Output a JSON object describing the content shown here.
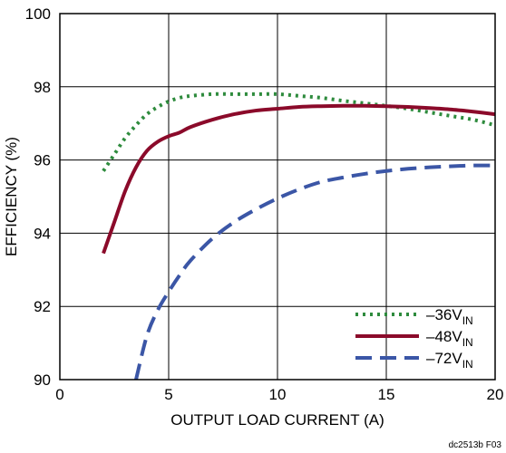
{
  "chart_data": {
    "type": "line",
    "xlabel": "OUTPUT LOAD CURRENT (A)",
    "ylabel": "EFFICIENCY (%)",
    "xlim": [
      0,
      20
    ],
    "ylim": [
      90,
      100
    ],
    "xticks": [
      0,
      5,
      10,
      15,
      20
    ],
    "yticks": [
      90,
      92,
      94,
      96,
      98,
      100
    ],
    "grid": true,
    "legend_position": "bottom-right",
    "series": [
      {
        "name": "–36V",
        "name_sub": "IN",
        "color": "#2e8b3d",
        "dash": "dotted",
        "x": [
          2,
          2.5,
          3,
          3.5,
          4,
          4.5,
          5,
          5.5,
          6,
          7,
          8,
          9,
          10,
          11,
          12,
          13,
          14,
          15,
          16,
          17,
          18,
          19,
          20
        ],
        "y": [
          95.7,
          96.15,
          96.6,
          96.95,
          97.25,
          97.45,
          97.6,
          97.7,
          97.75,
          97.8,
          97.8,
          97.8,
          97.8,
          97.75,
          97.7,
          97.62,
          97.55,
          97.48,
          97.4,
          97.3,
          97.2,
          97.1,
          96.95
        ]
      },
      {
        "name": "–48V",
        "name_sub": "IN",
        "color": "#8b0a2a",
        "dash": "solid",
        "x": [
          2,
          2.5,
          3,
          3.5,
          4,
          4.5,
          5,
          5.5,
          6,
          7,
          8,
          9,
          10,
          11,
          12,
          13,
          14,
          15,
          16,
          17,
          18,
          19,
          20
        ],
        "y": [
          93.45,
          94.3,
          95.15,
          95.8,
          96.25,
          96.5,
          96.65,
          96.75,
          96.9,
          97.1,
          97.25,
          97.35,
          97.4,
          97.45,
          97.47,
          97.48,
          97.48,
          97.47,
          97.45,
          97.42,
          97.38,
          97.32,
          97.25
        ]
      },
      {
        "name": "–72V",
        "name_sub": "IN",
        "color": "#3b56a6",
        "dash": "dashed",
        "x": [
          3.5,
          4,
          4.5,
          5,
          5.5,
          6,
          7,
          8,
          9,
          10,
          11,
          12,
          13,
          14,
          15,
          16,
          17,
          18,
          19,
          20
        ],
        "y": [
          90,
          91.2,
          91.9,
          92.4,
          92.85,
          93.25,
          93.85,
          94.3,
          94.65,
          94.95,
          95.2,
          95.4,
          95.52,
          95.62,
          95.7,
          95.76,
          95.8,
          95.83,
          95.85,
          95.85
        ]
      }
    ]
  },
  "footnote": "dc2513b F03"
}
